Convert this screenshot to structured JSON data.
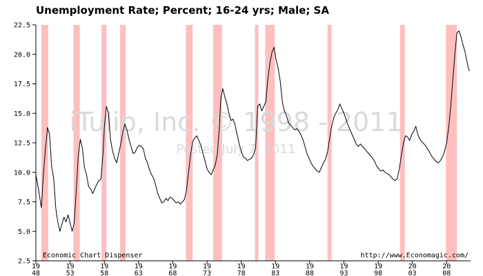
{
  "chart_data": {
    "type": "line",
    "title": "Unemployment Rate; Percent; 16-24 yrs; Male; SA",
    "xlabel": "",
    "ylabel": "",
    "ylim": [
      2.5,
      22.5
    ],
    "xlim": [
      1948,
      2011.5
    ],
    "grid": false,
    "y_ticks": [
      {
        "value": 2.5,
        "label": "2.5"
      },
      {
        "value": 5.0,
        "label": "5.0"
      },
      {
        "value": 7.5,
        "label": "7.5"
      },
      {
        "value": 10.0,
        "label": "10.0"
      },
      {
        "value": 12.5,
        "label": "12.5"
      },
      {
        "value": 15.0,
        "label": "15.0"
      },
      {
        "value": 17.5,
        "label": "17.5"
      },
      {
        "value": 20.0,
        "label": "20.0"
      },
      {
        "value": 22.5,
        "label": "22.5"
      }
    ],
    "x_ticks": [
      {
        "value": 1948,
        "line1": "19",
        "line2": "48"
      },
      {
        "value": 1953,
        "line1": "19",
        "line2": "53"
      },
      {
        "value": 1958,
        "line1": "19",
        "line2": "58"
      },
      {
        "value": 1963,
        "line1": "19",
        "line2": "63"
      },
      {
        "value": 1968,
        "line1": "19",
        "line2": "68"
      },
      {
        "value": 1973,
        "line1": "19",
        "line2": "73"
      },
      {
        "value": 1978,
        "line1": "19",
        "line2": "78"
      },
      {
        "value": 1983,
        "line1": "19",
        "line2": "83"
      },
      {
        "value": 1988,
        "line1": "19",
        "line2": "88"
      },
      {
        "value": 1993,
        "line1": "19",
        "line2": "93"
      },
      {
        "value": 1998,
        "line1": "19",
        "line2": "98"
      },
      {
        "value": 2003,
        "line1": "20",
        "line2": "03"
      },
      {
        "value": 2008,
        "line1": "20",
        "line2": "08"
      }
    ],
    "recessions": [
      [
        1948.8,
        1949.8
      ],
      [
        1953.5,
        1954.4
      ],
      [
        1957.6,
        1958.3
      ],
      [
        1960.3,
        1961.1
      ],
      [
        1969.9,
        1970.9
      ],
      [
        1973.9,
        1975.2
      ],
      [
        1980.0,
        1980.5
      ],
      [
        1981.5,
        1982.9
      ],
      [
        1990.6,
        1991.2
      ],
      [
        2001.2,
        2001.9
      ],
      [
        2007.9,
        2009.5
      ]
    ],
    "series": [
      {
        "values": [
          [
            1948.0,
            9.8
          ],
          [
            1948.4,
            8.5
          ],
          [
            1948.8,
            7.0
          ],
          [
            1949.1,
            9.8
          ],
          [
            1949.4,
            12.0
          ],
          [
            1949.7,
            13.8
          ],
          [
            1950.0,
            13.2
          ],
          [
            1950.3,
            10.5
          ],
          [
            1950.6,
            9.5
          ],
          [
            1950.9,
            7.0
          ],
          [
            1951.2,
            5.8
          ],
          [
            1951.5,
            5.0
          ],
          [
            1951.8,
            5.6
          ],
          [
            1952.1,
            6.2
          ],
          [
            1952.4,
            5.8
          ],
          [
            1952.7,
            6.4
          ],
          [
            1953.0,
            5.7
          ],
          [
            1953.3,
            5.0
          ],
          [
            1953.6,
            5.7
          ],
          [
            1953.9,
            8.5
          ],
          [
            1954.2,
            11.5
          ],
          [
            1954.5,
            12.8
          ],
          [
            1954.8,
            12.0
          ],
          [
            1955.1,
            10.4
          ],
          [
            1955.4,
            9.8
          ],
          [
            1955.7,
            8.8
          ],
          [
            1956.0,
            8.6
          ],
          [
            1956.3,
            8.2
          ],
          [
            1956.6,
            8.6
          ],
          [
            1956.9,
            9.0
          ],
          [
            1957.2,
            9.3
          ],
          [
            1957.5,
            9.4
          ],
          [
            1957.8,
            11.5
          ],
          [
            1958.0,
            13.8
          ],
          [
            1958.3,
            15.6
          ],
          [
            1958.6,
            15.0
          ],
          [
            1958.9,
            12.8
          ],
          [
            1959.2,
            11.8
          ],
          [
            1959.5,
            11.2
          ],
          [
            1959.8,
            10.8
          ],
          [
            1960.1,
            11.6
          ],
          [
            1960.4,
            12.4
          ],
          [
            1960.7,
            13.4
          ],
          [
            1961.0,
            14.1
          ],
          [
            1961.3,
            13.6
          ],
          [
            1961.6,
            12.8
          ],
          [
            1961.9,
            12.2
          ],
          [
            1962.2,
            11.6
          ],
          [
            1962.5,
            11.7
          ],
          [
            1962.8,
            12.1
          ],
          [
            1963.1,
            12.3
          ],
          [
            1963.4,
            12.2
          ],
          [
            1963.7,
            12.0
          ],
          [
            1964.0,
            11.2
          ],
          [
            1964.3,
            10.8
          ],
          [
            1964.6,
            10.2
          ],
          [
            1964.9,
            9.8
          ],
          [
            1965.2,
            9.5
          ],
          [
            1965.5,
            8.9
          ],
          [
            1965.8,
            8.2
          ],
          [
            1966.1,
            7.8
          ],
          [
            1966.4,
            7.4
          ],
          [
            1966.7,
            7.5
          ],
          [
            1967.0,
            7.8
          ],
          [
            1967.3,
            7.6
          ],
          [
            1967.6,
            7.9
          ],
          [
            1967.9,
            7.8
          ],
          [
            1968.2,
            7.6
          ],
          [
            1968.5,
            7.4
          ],
          [
            1968.8,
            7.5
          ],
          [
            1969.1,
            7.3
          ],
          [
            1969.4,
            7.5
          ],
          [
            1969.7,
            7.7
          ],
          [
            1970.0,
            8.5
          ],
          [
            1970.3,
            10.0
          ],
          [
            1970.6,
            11.5
          ],
          [
            1970.9,
            12.6
          ],
          [
            1971.2,
            12.9
          ],
          [
            1971.5,
            13.1
          ],
          [
            1971.8,
            12.7
          ],
          [
            1972.1,
            12.3
          ],
          [
            1972.4,
            11.6
          ],
          [
            1972.7,
            11.0
          ],
          [
            1973.0,
            10.3
          ],
          [
            1973.3,
            10.0
          ],
          [
            1973.6,
            9.8
          ],
          [
            1973.9,
            10.2
          ],
          [
            1974.2,
            10.6
          ],
          [
            1974.5,
            11.5
          ],
          [
            1974.8,
            13.8
          ],
          [
            1975.0,
            16.2
          ],
          [
            1975.3,
            17.1
          ],
          [
            1975.6,
            16.4
          ],
          [
            1975.9,
            15.8
          ],
          [
            1976.2,
            15.0
          ],
          [
            1976.5,
            14.4
          ],
          [
            1976.8,
            14.5
          ],
          [
            1977.1,
            14.0
          ],
          [
            1977.4,
            13.2
          ],
          [
            1977.7,
            12.4
          ],
          [
            1978.0,
            11.8
          ],
          [
            1978.3,
            11.3
          ],
          [
            1978.6,
            11.2
          ],
          [
            1978.9,
            11.0
          ],
          [
            1979.2,
            11.1
          ],
          [
            1979.5,
            11.2
          ],
          [
            1979.8,
            11.5
          ],
          [
            1980.1,
            12.1
          ],
          [
            1980.4,
            15.6
          ],
          [
            1980.7,
            15.8
          ],
          [
            1981.0,
            15.2
          ],
          [
            1981.3,
            15.6
          ],
          [
            1981.6,
            16.0
          ],
          [
            1981.9,
            18.0
          ],
          [
            1982.2,
            19.3
          ],
          [
            1982.5,
            20.2
          ],
          [
            1982.8,
            20.6
          ],
          [
            1983.1,
            19.5
          ],
          [
            1983.4,
            18.8
          ],
          [
            1983.7,
            17.7
          ],
          [
            1984.0,
            16.0
          ],
          [
            1984.3,
            15.2
          ],
          [
            1984.6,
            14.8
          ],
          [
            1984.9,
            14.2
          ],
          [
            1985.2,
            14.0
          ],
          [
            1985.5,
            13.8
          ],
          [
            1985.8,
            13.6
          ],
          [
            1986.1,
            13.7
          ],
          [
            1986.4,
            13.5
          ],
          [
            1986.7,
            13.2
          ],
          [
            1987.0,
            12.8
          ],
          [
            1987.3,
            12.2
          ],
          [
            1987.6,
            11.6
          ],
          [
            1987.9,
            11.2
          ],
          [
            1988.2,
            10.8
          ],
          [
            1988.5,
            10.5
          ],
          [
            1988.8,
            10.3
          ],
          [
            1989.1,
            10.1
          ],
          [
            1989.4,
            10.0
          ],
          [
            1989.7,
            10.4
          ],
          [
            1990.0,
            10.8
          ],
          [
            1990.3,
            11.1
          ],
          [
            1990.6,
            11.7
          ],
          [
            1990.9,
            12.8
          ],
          [
            1991.2,
            13.9
          ],
          [
            1991.5,
            14.6
          ],
          [
            1991.8,
            15.0
          ],
          [
            1992.1,
            15.3
          ],
          [
            1992.4,
            15.8
          ],
          [
            1992.7,
            15.4
          ],
          [
            1993.0,
            15.0
          ],
          [
            1993.3,
            14.5
          ],
          [
            1993.6,
            14.0
          ],
          [
            1993.9,
            13.6
          ],
          [
            1994.2,
            13.2
          ],
          [
            1994.5,
            12.8
          ],
          [
            1994.8,
            12.4
          ],
          [
            1995.1,
            12.2
          ],
          [
            1995.4,
            12.4
          ],
          [
            1995.7,
            12.2
          ],
          [
            1996.0,
            12.0
          ],
          [
            1996.3,
            11.8
          ],
          [
            1996.6,
            11.6
          ],
          [
            1996.9,
            11.4
          ],
          [
            1997.2,
            11.2
          ],
          [
            1997.5,
            10.9
          ],
          [
            1997.8,
            10.5
          ],
          [
            1998.1,
            10.3
          ],
          [
            1998.4,
            10.1
          ],
          [
            1998.7,
            10.2
          ],
          [
            1999.0,
            10.0
          ],
          [
            1999.3,
            9.9
          ],
          [
            1999.6,
            9.8
          ],
          [
            1999.9,
            9.6
          ],
          [
            2000.2,
            9.4
          ],
          [
            2000.5,
            9.3
          ],
          [
            2000.8,
            9.5
          ],
          [
            2001.1,
            10.3
          ],
          [
            2001.4,
            11.5
          ],
          [
            2001.7,
            12.5
          ],
          [
            2002.0,
            13.1
          ],
          [
            2002.3,
            13.0
          ],
          [
            2002.6,
            12.7
          ],
          [
            2002.9,
            13.2
          ],
          [
            2003.2,
            13.5
          ],
          [
            2003.5,
            13.9
          ],
          [
            2003.8,
            13.2
          ],
          [
            2004.1,
            12.8
          ],
          [
            2004.4,
            12.6
          ],
          [
            2004.7,
            12.4
          ],
          [
            2005.0,
            12.2
          ],
          [
            2005.3,
            11.9
          ],
          [
            2005.6,
            11.6
          ],
          [
            2005.9,
            11.3
          ],
          [
            2006.2,
            11.1
          ],
          [
            2006.5,
            10.9
          ],
          [
            2006.8,
            10.8
          ],
          [
            2007.1,
            11.0
          ],
          [
            2007.4,
            11.3
          ],
          [
            2007.7,
            11.8
          ],
          [
            2008.0,
            12.5
          ],
          [
            2008.3,
            13.8
          ],
          [
            2008.6,
            15.6
          ],
          [
            2008.9,
            17.8
          ],
          [
            2009.2,
            20.0
          ],
          [
            2009.5,
            21.8
          ],
          [
            2009.8,
            22.0
          ],
          [
            2010.1,
            21.5
          ],
          [
            2010.4,
            20.8
          ],
          [
            2010.7,
            20.2
          ],
          [
            2011.0,
            19.3
          ],
          [
            2011.3,
            18.6
          ]
        ]
      }
    ]
  },
  "footer": {
    "left": "Economic Chart Dispenser",
    "right": "http://www.Economagic.com/"
  },
  "watermark": {
    "main": "iTulip, Inc. © 1998 - 2011",
    "sub": "Posted July 7, 2011"
  },
  "colors": {
    "line": "#000000",
    "recession": "#ffbfbf",
    "axis": "#000000",
    "background": "#ffffff",
    "watermark": "#d9d9d9"
  }
}
